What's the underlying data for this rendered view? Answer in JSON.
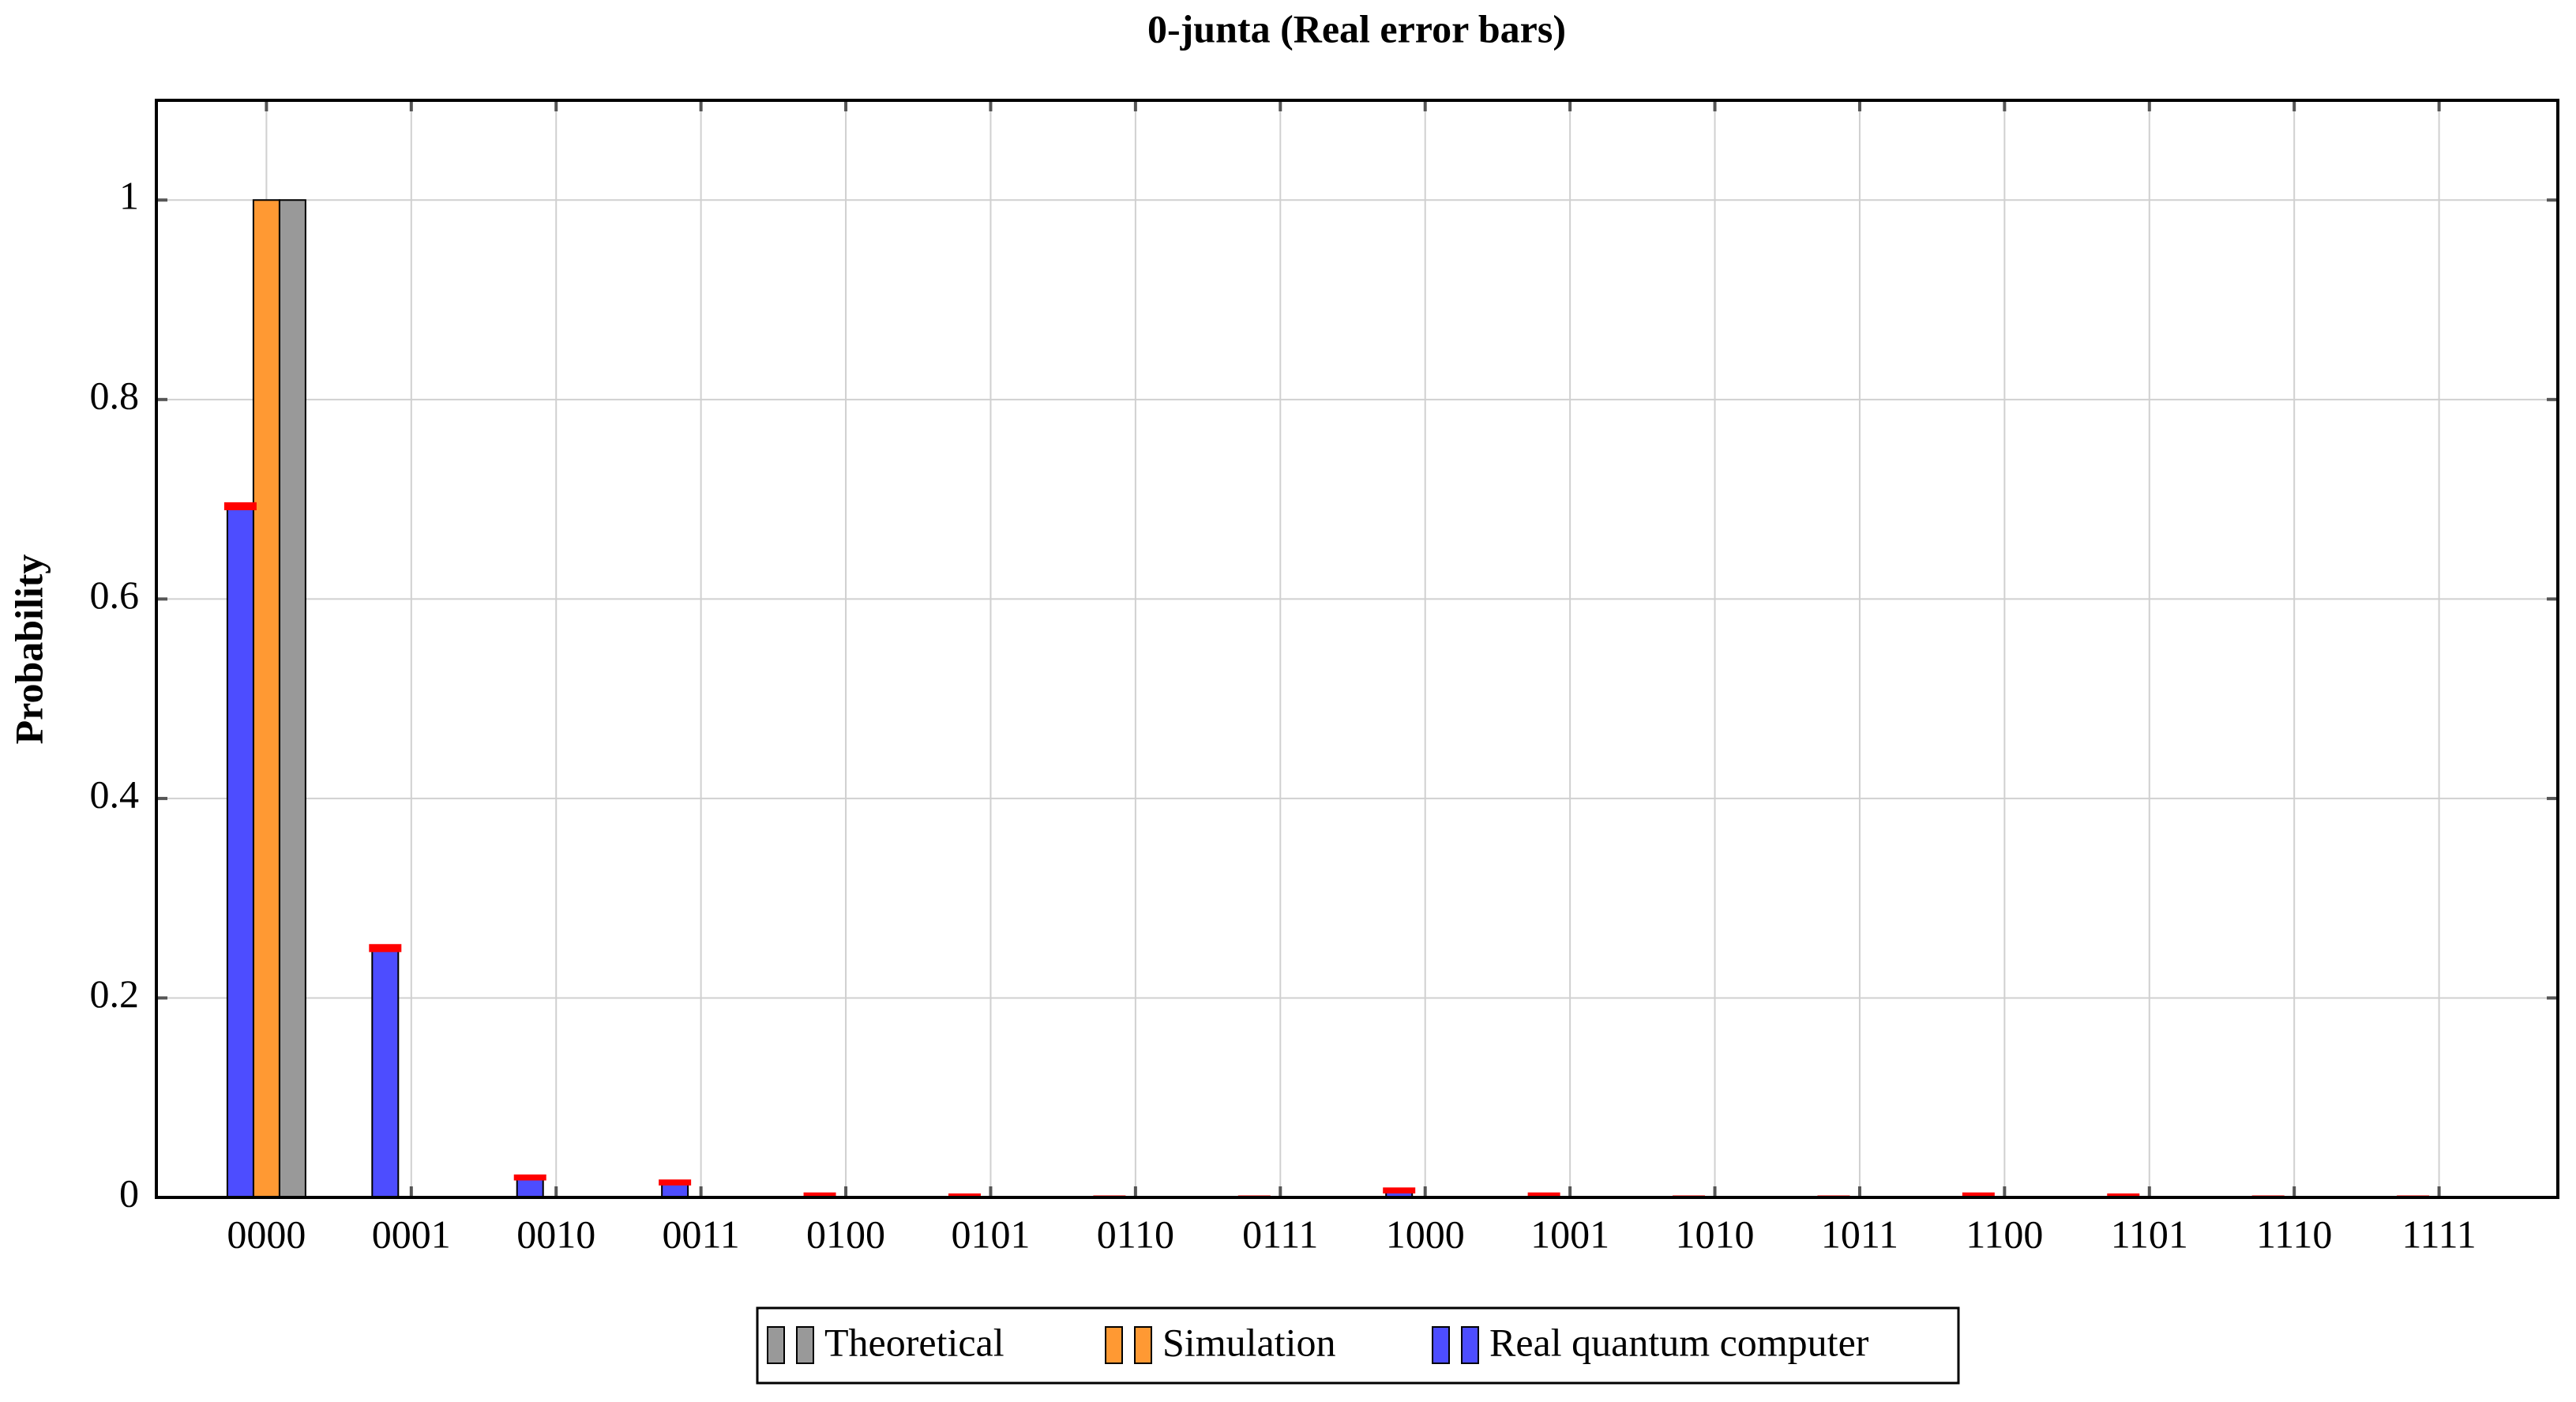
{
  "chart_data": {
    "type": "bar",
    "title": "0-junta (Real error bars)",
    "y_label": "Probability",
    "categories": [
      "0000",
      "0001",
      "0010",
      "0011",
      "0100",
      "0101",
      "0110",
      "0111",
      "1000",
      "1001",
      "1010",
      "1011",
      "1100",
      "1101",
      "1110",
      "1111"
    ],
    "series": [
      {
        "name": "Theoretical",
        "color": "#999999",
        "values": [
          1,
          0,
          0,
          0,
          0,
          0,
          0,
          0,
          0,
          0,
          0,
          0,
          0,
          0,
          0,
          0
        ]
      },
      {
        "name": "Simulation",
        "color": "#ff9933",
        "values": [
          1,
          0,
          0,
          0,
          0,
          0,
          0,
          0,
          0,
          0,
          0,
          0,
          0,
          0,
          0,
          0
        ]
      },
      {
        "name": "Real quantum computer",
        "color": "#4d4dff",
        "error_color": "#ff0000",
        "values": [
          0.693,
          0.25,
          0.02,
          0.015,
          0.003,
          0.002,
          0.001,
          0.001,
          0.007,
          0.003,
          0.001,
          0.001,
          0.003,
          0.002,
          0.001,
          0.001
        ],
        "errors": [
          0.004,
          0.004,
          0.003,
          0.003,
          0.002,
          0.002,
          0.001,
          0.001,
          0.003,
          0.002,
          0.001,
          0.001,
          0.002,
          0.002,
          0.001,
          0.001
        ]
      }
    ],
    "ylim": [
      0,
      1.1
    ],
    "yticks": [
      0,
      0.2,
      0.4,
      0.6,
      0.8,
      1
    ],
    "grid": true,
    "legend": "bottom"
  }
}
